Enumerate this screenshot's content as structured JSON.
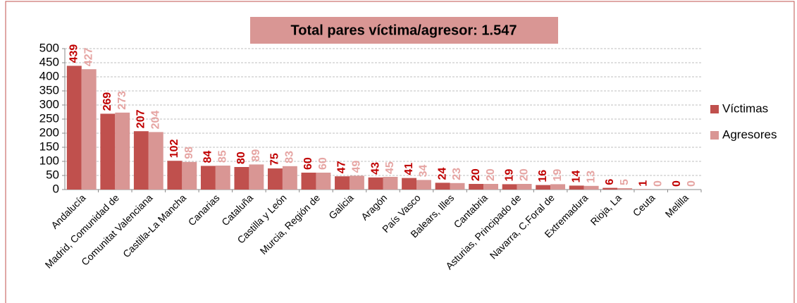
{
  "chart_data": {
    "type": "bar",
    "title": "Total pares víctima/agresor: 1.547",
    "categories": [
      "Andalucía",
      "Madrid, Comunidad de",
      "Comunitat Valenciana",
      "Castilla-La Mancha",
      "Canarias",
      "Cataluña",
      "Castilla y León",
      "Murcia, Región de",
      "Galicia",
      "Aragón",
      "País Vasco",
      "Balears, Illes",
      "Cantabria",
      "Asturias, Principado de",
      "Navarra, C.Foral de",
      "Extremadura",
      "Rioja, La",
      "Ceuta",
      "Melilla"
    ],
    "series": [
      {
        "name": "Víctimas",
        "color": "#c0504d",
        "label_color": "#c00000",
        "values": [
          439,
          269,
          207,
          102,
          84,
          80,
          75,
          60,
          47,
          43,
          41,
          24,
          20,
          19,
          16,
          14,
          6,
          1,
          0
        ]
      },
      {
        "name": "Agresores",
        "color": "#d99694",
        "label_color": "#e6a5a3",
        "values": [
          427,
          273,
          204,
          98,
          85,
          89,
          83,
          60,
          49,
          45,
          34,
          23,
          20,
          20,
          19,
          13,
          5,
          0,
          0
        ]
      }
    ],
    "ylim": [
      0,
      500
    ],
    "yticks": [
      0,
      50,
      100,
      150,
      200,
      250,
      300,
      350,
      400,
      450,
      500
    ],
    "grid": true,
    "legend": "right"
  }
}
